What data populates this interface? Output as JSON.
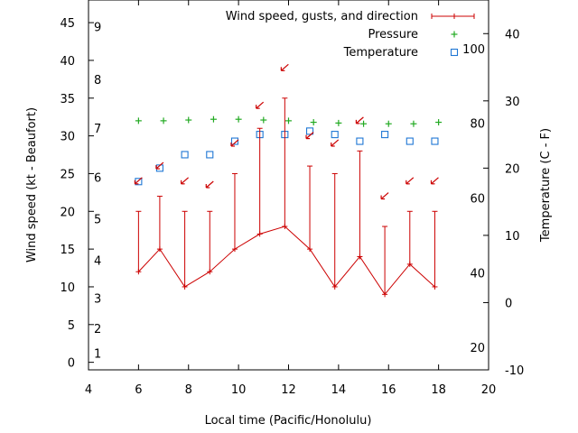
{
  "chart_data": {
    "type": "line",
    "xlabel": "Local time (Pacific/Honolulu)",
    "ylabel_left": "Wind speed (kt - Beaufort)",
    "ylabel_right": "Temperature (C - F)",
    "xlim": [
      4,
      20
    ],
    "ylim": [
      -1,
      48
    ],
    "y2lim": [
      -10,
      45
    ],
    "x_ticks": [
      4,
      6,
      8,
      10,
      12,
      14,
      16,
      18,
      20
    ],
    "y_ticks": [
      0,
      5,
      10,
      15,
      20,
      25,
      30,
      35,
      40,
      45
    ],
    "y2_ticks": [
      -10,
      0,
      10,
      20,
      30,
      40
    ],
    "fahrenheit_labels": [
      20,
      40,
      60,
      80,
      100
    ],
    "beaufort_labels": [
      {
        "label": "1",
        "speed": 1.2
      },
      {
        "label": "2",
        "speed": 4.5
      },
      {
        "label": "3",
        "speed": 8.5
      },
      {
        "label": "4",
        "speed": 13.5
      },
      {
        "label": "5",
        "speed": 19
      },
      {
        "label": "6",
        "speed": 24.5
      },
      {
        "label": "7",
        "speed": 31
      },
      {
        "label": "8",
        "speed": 37.5
      },
      {
        "label": "9",
        "speed": 44.5
      }
    ],
    "legend": [
      {
        "label": "Wind speed, gusts, and direction",
        "marker": "errorbar",
        "color": "#cc0000"
      },
      {
        "label": "Pressure",
        "marker": "plus",
        "color": "#22aa22"
      },
      {
        "label": "Temperature",
        "marker": "square",
        "color": "#1f77d4"
      }
    ],
    "legend_position": "top-right",
    "grid": false,
    "series": [
      {
        "name": "Wind speed, gusts, and direction",
        "color": "#cc0000",
        "x": [
          6,
          6.85,
          7.85,
          8.85,
          9.85,
          10.85,
          11.85,
          12.85,
          13.85,
          14.85,
          15.85,
          16.85,
          17.85
        ],
        "wind": [
          12,
          15,
          10,
          12,
          15,
          17,
          18,
          15,
          10,
          14,
          9,
          13,
          10
        ],
        "gust": [
          20,
          22,
          20,
          20,
          25,
          31,
          35,
          26,
          25,
          28,
          18,
          20,
          20
        ],
        "direction_arrow_speed": [
          24,
          26,
          24,
          23.5,
          29,
          34,
          39,
          30,
          29,
          32,
          22,
          24,
          24
        ]
      },
      {
        "name": "Pressure",
        "color": "#22aa22",
        "x": [
          6,
          7,
          8,
          9,
          10,
          11,
          12,
          13,
          14,
          15,
          16,
          17,
          18
        ],
        "values": [
          32,
          32,
          32.1,
          32.2,
          32.2,
          32.1,
          32,
          31.8,
          31.7,
          31.6,
          31.6,
          31.6,
          31.8
        ]
      },
      {
        "name": "Temperature",
        "color": "#1f77d4",
        "x": [
          6,
          6.85,
          7.85,
          8.85,
          9.85,
          10.85,
          11.85,
          12.85,
          13.85,
          14.85,
          15.85,
          16.85,
          17.85
        ],
        "values": [
          18,
          20,
          22,
          22,
          24,
          25,
          25,
          25.5,
          25,
          24,
          25,
          24,
          24
        ]
      }
    ]
  }
}
